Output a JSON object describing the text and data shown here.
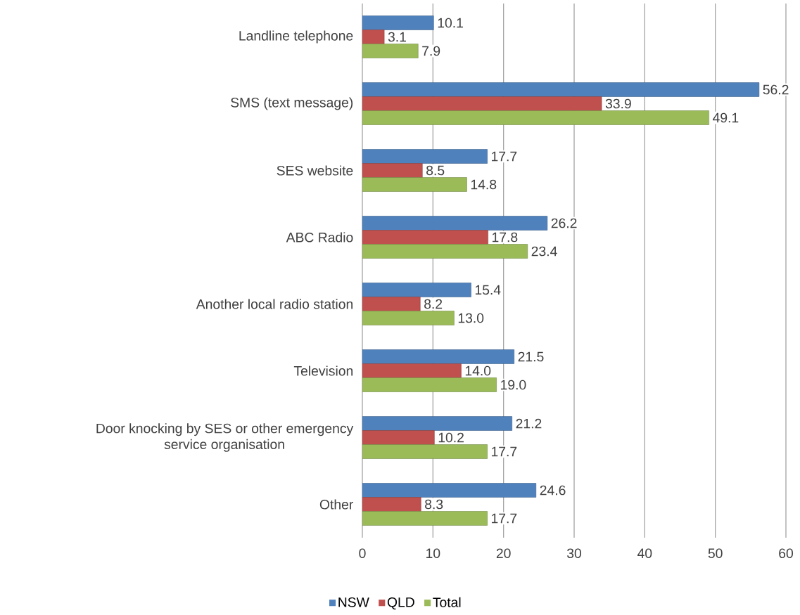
{
  "chart_data": {
    "type": "bar",
    "orientation": "horizontal",
    "categories": [
      "Landline telephone",
      "SMS (text message)",
      "SES website",
      "ABC Radio",
      "Another local radio station",
      "Television",
      "Door knocking by SES or other emergency service organisation",
      "Other"
    ],
    "series": [
      {
        "name": "NSW",
        "color": "#4f81bd",
        "values": [
          10.1,
          56.2,
          17.7,
          26.2,
          15.4,
          21.5,
          21.2,
          24.6
        ],
        "value_labels": [
          "10.1",
          "56.2",
          "17.7",
          "26.2",
          "15.4",
          "21.5",
          "21.2",
          "24.6"
        ]
      },
      {
        "name": "QLD",
        "color": "#c0504d",
        "values": [
          3.1,
          33.9,
          8.5,
          17.8,
          8.2,
          14.0,
          10.2,
          8.3
        ],
        "value_labels": [
          "3.1",
          "33.9",
          "8.5",
          "17.8",
          "8.2",
          "14.0",
          "10.2",
          "8.3"
        ]
      },
      {
        "name": "Total",
        "color": "#9bbb59",
        "values": [
          7.9,
          49.1,
          14.8,
          23.4,
          13.0,
          19.0,
          17.7,
          17.7
        ],
        "value_labels": [
          "7.9",
          "49.1",
          "14.8",
          "23.4",
          "13.0",
          "19.0",
          "17.7",
          "17.7"
        ]
      }
    ],
    "xlim": [
      0,
      60
    ],
    "xticks": [
      0,
      10,
      20,
      30,
      40,
      50,
      60
    ],
    "grid": "x",
    "legend": "bottom"
  }
}
